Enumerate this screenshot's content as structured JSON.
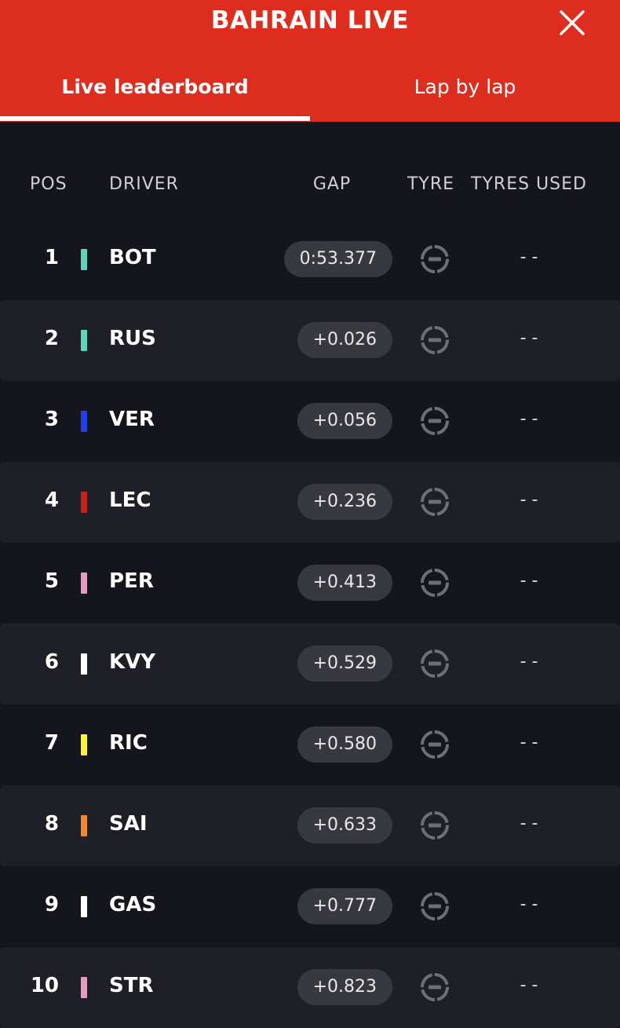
{
  "header": {
    "title": "BAHRAIN LIVE",
    "tabs": [
      "Live leaderboard",
      "Lap by lap"
    ]
  },
  "table": {
    "columns": [
      "POS",
      "DRIVER",
      "GAP",
      "TYRE",
      "TYRES USED"
    ],
    "rows": [
      {
        "pos": "1",
        "driver": "BOT",
        "color": "#5fd3be",
        "gap": "0:53.377",
        "tyres_used": "- -"
      },
      {
        "pos": "2",
        "driver": "RUS",
        "color": "#5fd3be",
        "gap": "+0.026",
        "tyres_used": "- -"
      },
      {
        "pos": "3",
        "driver": "VER",
        "color": "#2340e8",
        "gap": "+0.056",
        "tyres_used": "- -"
      },
      {
        "pos": "4",
        "driver": "LEC",
        "color": "#c8201a",
        "gap": "+0.236",
        "tyres_used": "- -"
      },
      {
        "pos": "5",
        "driver": "PER",
        "color": "#e89ac4",
        "gap": "+0.413",
        "tyres_used": "- -"
      },
      {
        "pos": "6",
        "driver": "KVY",
        "color": "#ffffff",
        "gap": "+0.529",
        "tyres_used": "- -"
      },
      {
        "pos": "7",
        "driver": "RIC",
        "color": "#fff23c",
        "gap": "+0.580",
        "tyres_used": "- -"
      },
      {
        "pos": "8",
        "driver": "SAI",
        "color": "#f08a2c",
        "gap": "+0.633",
        "tyres_used": "- -"
      },
      {
        "pos": "9",
        "driver": "GAS",
        "color": "#ffffff",
        "gap": "+0.777",
        "tyres_used": "- -"
      },
      {
        "pos": "10",
        "driver": "STR",
        "color": "#e89ac4",
        "gap": "+0.823",
        "tyres_used": "- -"
      }
    ]
  }
}
